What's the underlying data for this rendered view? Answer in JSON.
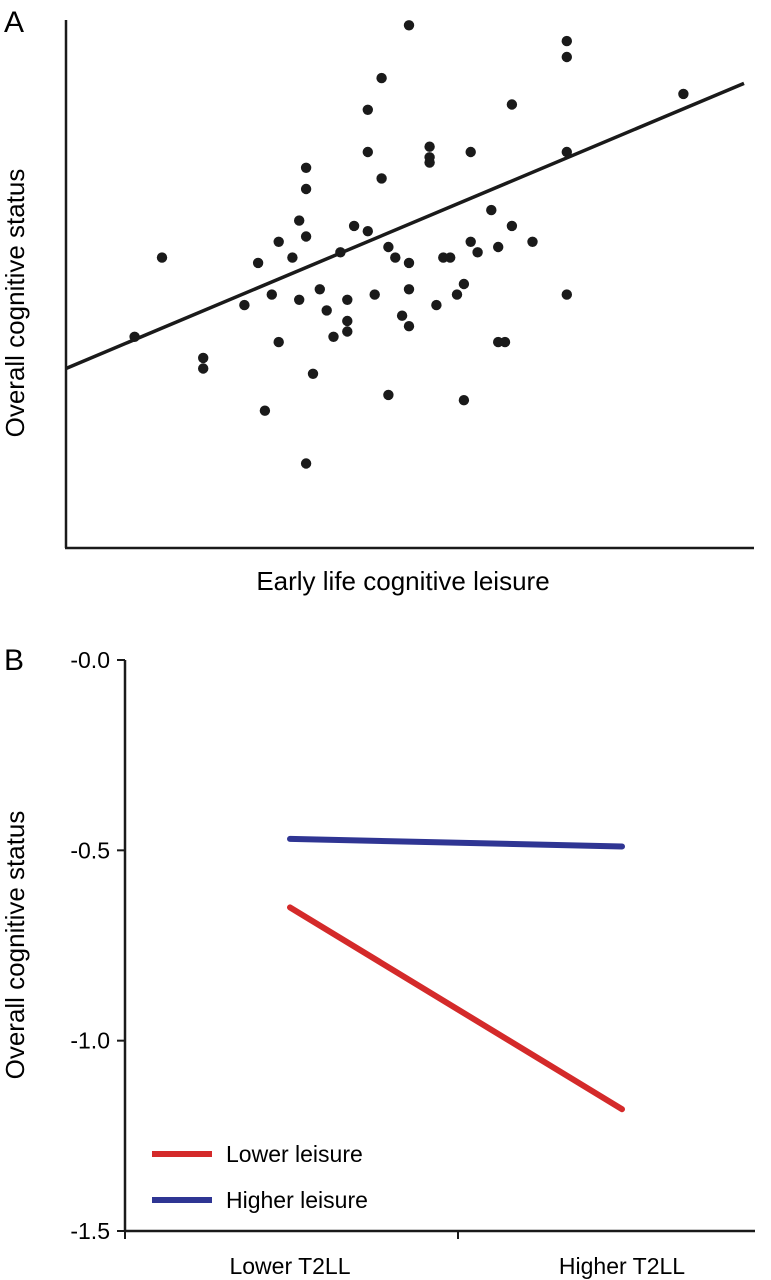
{
  "chart_data": [
    {
      "panel": "A",
      "type": "scatter",
      "xlabel": "Early life cognitive leisure",
      "ylabel": "Overall cognitive status",
      "xlim": [
        0,
        10
      ],
      "ylim": [
        0,
        10
      ],
      "axis_ticks_shown": false,
      "grid": false,
      "point_color": "#1a1a1a",
      "points": [
        [
          1.0,
          4.0
        ],
        [
          1.4,
          5.5
        ],
        [
          2.0,
          3.6
        ],
        [
          2.0,
          3.4
        ],
        [
          2.6,
          4.6
        ],
        [
          2.9,
          2.6
        ],
        [
          2.8,
          5.4
        ],
        [
          3.1,
          5.8
        ],
        [
          3.1,
          3.9
        ],
        [
          3.3,
          5.5
        ],
        [
          3.0,
          4.8
        ],
        [
          3.4,
          6.2
        ],
        [
          3.5,
          5.9
        ],
        [
          3.5,
          7.2
        ],
        [
          3.5,
          6.8
        ],
        [
          3.6,
          3.3
        ],
        [
          3.4,
          4.7
        ],
        [
          3.5,
          1.6
        ],
        [
          3.8,
          4.5
        ],
        [
          3.7,
          4.9
        ],
        [
          3.9,
          4.0
        ],
        [
          4.0,
          5.6
        ],
        [
          4.1,
          4.3
        ],
        [
          4.1,
          4.1
        ],
        [
          4.1,
          4.7
        ],
        [
          4.2,
          6.1
        ],
        [
          4.4,
          6.0
        ],
        [
          4.4,
          7.5
        ],
        [
          4.4,
          8.3
        ],
        [
          4.5,
          4.8
        ],
        [
          4.7,
          2.9
        ],
        [
          4.6,
          8.9
        ],
        [
          4.6,
          7.0
        ],
        [
          4.7,
          5.7
        ],
        [
          4.8,
          5.5
        ],
        [
          4.9,
          4.4
        ],
        [
          5.0,
          4.2
        ],
        [
          5.0,
          5.4
        ],
        [
          5.0,
          9.9
        ],
        [
          5.0,
          4.9
        ],
        [
          5.3,
          7.3
        ],
        [
          5.3,
          7.6
        ],
        [
          5.3,
          7.4
        ],
        [
          5.4,
          4.6
        ],
        [
          5.5,
          5.5
        ],
        [
          5.6,
          5.5
        ],
        [
          5.7,
          4.8
        ],
        [
          5.8,
          5.0
        ],
        [
          5.8,
          2.8
        ],
        [
          5.9,
          7.5
        ],
        [
          5.9,
          5.8
        ],
        [
          6.0,
          5.6
        ],
        [
          6.2,
          6.4
        ],
        [
          6.3,
          5.7
        ],
        [
          6.3,
          3.9
        ],
        [
          6.4,
          3.9
        ],
        [
          6.5,
          6.1
        ],
        [
          6.5,
          8.4
        ],
        [
          6.8,
          5.8
        ],
        [
          7.3,
          9.6
        ],
        [
          7.3,
          7.5
        ],
        [
          7.3,
          4.8
        ],
        [
          7.3,
          9.3
        ],
        [
          9.0,
          8.6
        ]
      ],
      "fit_line": {
        "x": [
          0,
          10
        ],
        "y": [
          3.4,
          8.8
        ],
        "color": "#1a1a1a"
      }
    },
    {
      "panel": "B",
      "type": "line",
      "xlabel": "",
      "ylabel": "Overall cognitive status",
      "categories": [
        "Lower T2LL",
        "Higher T2LL"
      ],
      "ylim": [
        -1.5,
        0.0
      ],
      "yticks": [
        -1.5,
        -1.0,
        -0.5,
        -0.0
      ],
      "ytick_labels": [
        "-1.5",
        "-1.0",
        "-0.5",
        "-0.0"
      ],
      "grid": false,
      "legend_position": "bottom-left",
      "series": [
        {
          "name": "Lower leisure",
          "values": [
            -0.65,
            -1.18
          ],
          "color": "#d42a2a"
        },
        {
          "name": "Higher leisure",
          "values": [
            -0.47,
            -0.49
          ],
          "color": "#2f3593"
        }
      ]
    }
  ]
}
